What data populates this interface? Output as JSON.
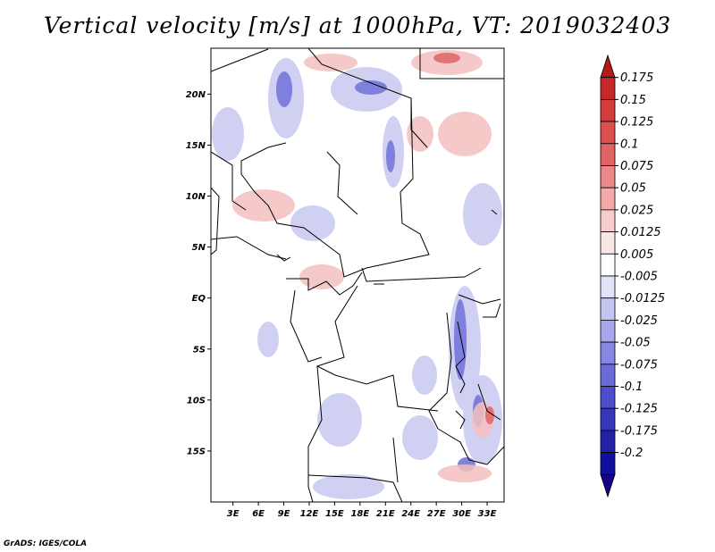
{
  "title": "Vertical velocity [m/s] at 1000hPa, VT: 2019032403",
  "credit": "GrADS: IGES/COLA",
  "map": {
    "lat_labels": [
      "20N",
      "15N",
      "10N",
      "5N",
      "EQ",
      "5S",
      "10S",
      "15S"
    ],
    "lon_labels": [
      "3E",
      "6E",
      "9E",
      "12E",
      "15E",
      "18E",
      "21E",
      "24E",
      "27E",
      "30E",
      "33E"
    ],
    "lat_values": [
      20,
      15,
      10,
      5,
      0,
      -5,
      -10,
      -15
    ],
    "lon_values": [
      3,
      6,
      9,
      12,
      15,
      18,
      21,
      24,
      27,
      30,
      33
    ],
    "lat_range": [
      -20,
      24.5
    ],
    "lon_range": [
      0.4,
      35
    ]
  },
  "colorbar": {
    "labels": [
      "0.175",
      "0.15",
      "0.125",
      "0.1",
      "0.075",
      "0.05",
      "0.025",
      "0.0125",
      "0.005",
      "-0.005",
      "-0.0125",
      "-0.025",
      "-0.05",
      "-0.075",
      "-0.1",
      "-0.125",
      "-0.175",
      "-0.2"
    ],
    "colors": [
      "#b41818",
      "#c62828",
      "#d23c3c",
      "#dc5050",
      "#e36464",
      "#ec8888",
      "#f4a8a8",
      "#f8cccc",
      "#fbe6e6",
      "#ffffff",
      "#e2e2f7",
      "#c4c4f1",
      "#a6a6eb",
      "#8686e3",
      "#6a6ad9",
      "#4e4ecc",
      "#3636bd",
      "#2222a6",
      "#1010a0",
      "#1a0088"
    ]
  }
}
